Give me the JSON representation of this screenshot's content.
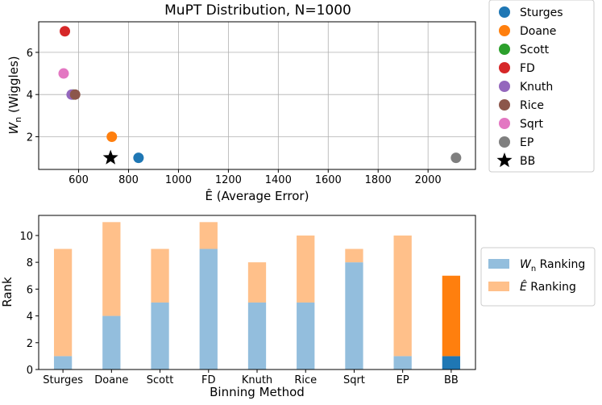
{
  "chart_data": [
    {
      "type": "scatter",
      "title": "MuPT Distribution, N=1000",
      "xlabel_var": "Ê",
      "xlabel_rest": " (Average Error)",
      "ylabel_var": "W",
      "ylabel_sub": "n",
      "ylabel_rest": " (Wiggles)",
      "xlim": [
        440,
        2190
      ],
      "ylim": [
        0.45,
        7.45
      ],
      "xticks": [
        600,
        800,
        1000,
        1200,
        1400,
        1600,
        1800,
        2000
      ],
      "yticks": [
        2,
        4,
        6
      ],
      "grid": true,
      "legend_position": "outside-right",
      "points": [
        {
          "name": "Sturges",
          "x": 840,
          "y": 1,
          "color": "#1f77b4",
          "marker": "circle"
        },
        {
          "name": "Doane",
          "x": 733,
          "y": 2,
          "color": "#ff7f0e",
          "marker": "circle"
        },
        {
          "name": "Scott",
          "x": 578,
          "y": 4,
          "color": "#2ca02c",
          "marker": "circle"
        },
        {
          "name": "FD",
          "x": 545,
          "y": 7,
          "color": "#d62728",
          "marker": "circle"
        },
        {
          "name": "Knuth",
          "x": 572,
          "y": 4,
          "color": "#9467bd",
          "marker": "circle"
        },
        {
          "name": "Rice",
          "x": 586,
          "y": 4,
          "color": "#8c564b",
          "marker": "circle"
        },
        {
          "name": "Sqrt",
          "x": 540,
          "y": 5,
          "color": "#e377c2",
          "marker": "circle"
        },
        {
          "name": "EP",
          "x": 2112,
          "y": 1,
          "color": "#7f7f7f",
          "marker": "circle"
        },
        {
          "name": "BB",
          "x": 728,
          "y": 1,
          "color": "#000000",
          "marker": "star"
        }
      ]
    },
    {
      "type": "bar",
      "stacked": true,
      "xlabel": "Binning Method",
      "ylabel": "Rank",
      "ylim": [
        0,
        11.5
      ],
      "yticks": [
        0,
        2,
        4,
        6,
        8,
        10
      ],
      "grid": false,
      "legend_position": "outside-right",
      "categories": [
        "Sturges",
        "Doane",
        "Scott",
        "FD",
        "Knuth",
        "Rice",
        "Sqrt",
        "EP",
        "BB"
      ],
      "series": [
        {
          "name_var": "W",
          "name_sub": "n",
          "name_rest": " Ranking",
          "values": [
            1,
            4,
            5,
            9,
            5,
            5,
            8,
            1,
            1
          ],
          "color": "#93bedd",
          "highlight_color": "#1f77b4"
        },
        {
          "name_var": "Ê",
          "name_rest": " Ranking",
          "values": [
            8,
            7,
            4,
            2,
            3,
            5,
            1,
            9,
            6
          ],
          "color": "#ffc08a",
          "highlight_color": "#ff7f0e"
        }
      ],
      "highlight_category": "BB"
    }
  ]
}
